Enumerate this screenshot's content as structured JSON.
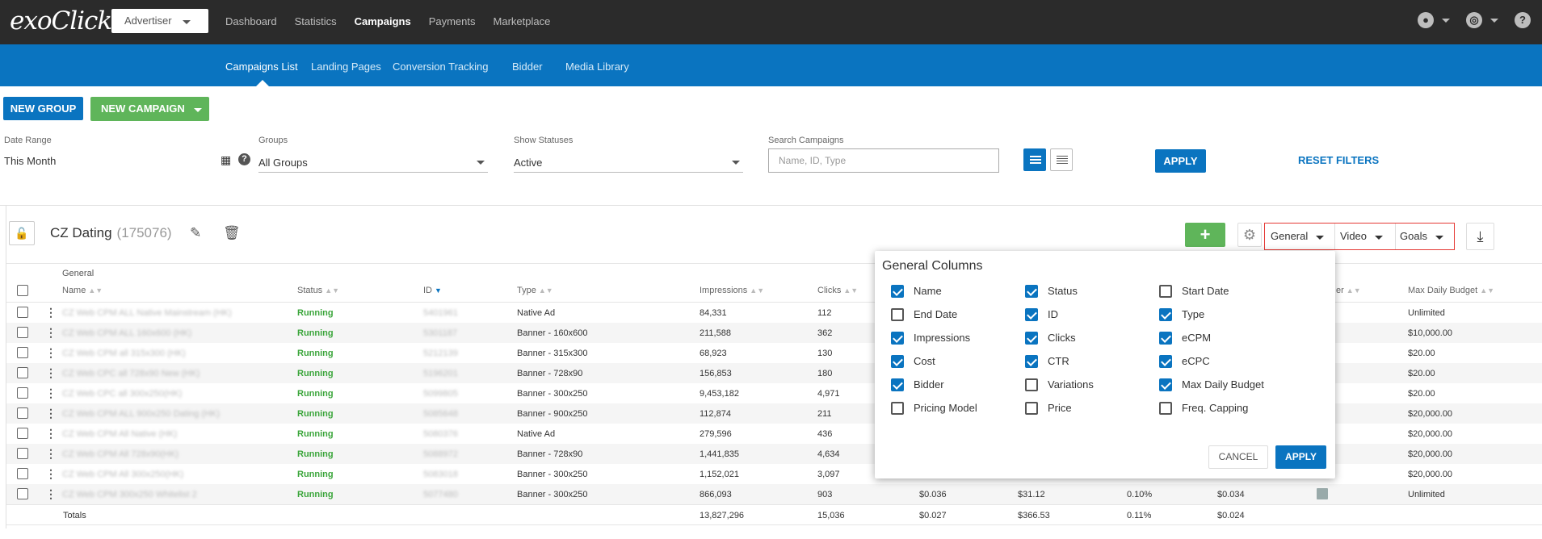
{
  "app": {
    "logo": "exoClick"
  },
  "account": {
    "label": "Advertiser"
  },
  "topnav": [
    "Dashboard",
    "Statistics",
    "Campaigns",
    "Payments",
    "Marketplace"
  ],
  "topnav_active": "Campaigns",
  "topright": {
    "user_icon": "user-icon",
    "globe_icon": "globe-icon",
    "help_icon": "help-icon"
  },
  "subnav": [
    "Campaigns List",
    "Landing Pages",
    "Conversion Tracking",
    "Bidder",
    "Media Library"
  ],
  "subnav_active": "Campaigns List",
  "actions": {
    "new_group": "NEW GROUP",
    "new_campaign": "NEW CAMPAIGN"
  },
  "filters": {
    "date_range": {
      "label": "Date Range",
      "value": "This Month"
    },
    "groups": {
      "label": "Groups",
      "value": "All Groups"
    },
    "statuses": {
      "label": "Show Statuses",
      "value": "Active"
    },
    "search": {
      "label": "Search Campaigns",
      "placeholder": "Name, ID, Type"
    },
    "apply": "APPLY",
    "reset": "RESET FILTERS"
  },
  "group": {
    "name": "CZ Dating",
    "id": "(175076)"
  },
  "column_groups": [
    "General",
    "Video",
    "Goals"
  ],
  "table": {
    "group_header": "General",
    "headers": {
      "name": "Name",
      "status": "Status",
      "id": "ID",
      "type": "Type",
      "impressions": "Impressions",
      "clicks": "Clicks",
      "bidder": "er",
      "max_daily_budget": "Max Daily Budget"
    },
    "rows": [
      {
        "name": "CZ Web CPM ALL Native Mainstream (HK)",
        "status": "Running",
        "id": "5401961",
        "type": "Native Ad",
        "impressions": "84,331",
        "clicks": "112",
        "budget": "Unlimited"
      },
      {
        "name": "CZ Web CPM ALL 160x600 (HK)",
        "status": "Running",
        "id": "5301187",
        "type": "Banner - 160x600",
        "impressions": "211,588",
        "clicks": "362",
        "budget": "$10,000.00"
      },
      {
        "name": "CZ Web CPM all 315x300 (HK)",
        "status": "Running",
        "id": "5212139",
        "type": "Banner - 315x300",
        "impressions": "68,923",
        "clicks": "130",
        "budget": "$20.00"
      },
      {
        "name": "CZ Web CPC all 728x90 New (HK)",
        "status": "Running",
        "id": "5196201",
        "type": "Banner - 728x90",
        "impressions": "156,853",
        "clicks": "180",
        "budget": "$20.00"
      },
      {
        "name": "CZ Web CPC all 300x250(HK)",
        "status": "Running",
        "id": "5099805",
        "type": "Banner - 300x250",
        "impressions": "9,453,182",
        "clicks": "4,971",
        "budget": "$20.00"
      },
      {
        "name": "CZ Web CPM ALL 900x250 Dating (HK)",
        "status": "Running",
        "id": "5085648",
        "type": "Banner - 900x250",
        "impressions": "112,874",
        "clicks": "211",
        "budget": "$20,000.00"
      },
      {
        "name": "CZ Web CPM All Native (HK)",
        "status": "Running",
        "id": "5080376",
        "type": "Native Ad",
        "impressions": "279,596",
        "clicks": "436",
        "budget": "$20,000.00"
      },
      {
        "name": "CZ Web CPM All 728x90(HK)",
        "status": "Running",
        "id": "5088972",
        "type": "Banner - 728x90",
        "impressions": "1,441,835",
        "clicks": "4,634",
        "budget": "$20,000.00"
      },
      {
        "name": "CZ Web CPM All 300x250(HK)",
        "status": "Running",
        "id": "5083018",
        "type": "Banner - 300x250",
        "impressions": "1,152,021",
        "clicks": "3,097",
        "budget": "$20,000.00"
      },
      {
        "name": "CZ Web CPM 300x250 Whitelist 2",
        "status": "Running",
        "id": "5077480",
        "type": "Banner - 300x250",
        "impressions": "866,093",
        "clicks": "903",
        "ecpm": "$0.036",
        "cost": "$31.12",
        "ctr": "0.10%",
        "ecpc": "$0.034",
        "budget": "Unlimited"
      }
    ],
    "totals": {
      "label": "Totals",
      "impressions": "13,827,296",
      "clicks": "15,036",
      "ecpm": "$0.027",
      "cost": "$366.53",
      "ctr": "0.11%",
      "ecpc": "$0.024"
    }
  },
  "popup": {
    "title": "General Columns",
    "options": [
      {
        "label": "Name",
        "checked": true
      },
      {
        "label": "Status",
        "checked": true
      },
      {
        "label": "Start Date",
        "checked": false
      },
      {
        "label": "End Date",
        "checked": false
      },
      {
        "label": "ID",
        "checked": true
      },
      {
        "label": "Type",
        "checked": true
      },
      {
        "label": "Impressions",
        "checked": true
      },
      {
        "label": "Clicks",
        "checked": true
      },
      {
        "label": "eCPM",
        "checked": true
      },
      {
        "label": "Cost",
        "checked": true
      },
      {
        "label": "CTR",
        "checked": true
      },
      {
        "label": "eCPC",
        "checked": true
      },
      {
        "label": "Bidder",
        "checked": true
      },
      {
        "label": "Variations",
        "checked": false
      },
      {
        "label": "Max Daily Budget",
        "checked": true
      },
      {
        "label": "Pricing Model",
        "checked": false
      },
      {
        "label": "Price",
        "checked": false
      },
      {
        "label": "Freq. Capping",
        "checked": false
      }
    ],
    "cancel": "CANCEL",
    "apply": "APPLY"
  },
  "colors": {
    "topbar": "#2b2b2b",
    "primary": "#0a74c0",
    "success": "#5fb55a",
    "running": "#3aa53a",
    "highlight": "#e53935"
  }
}
